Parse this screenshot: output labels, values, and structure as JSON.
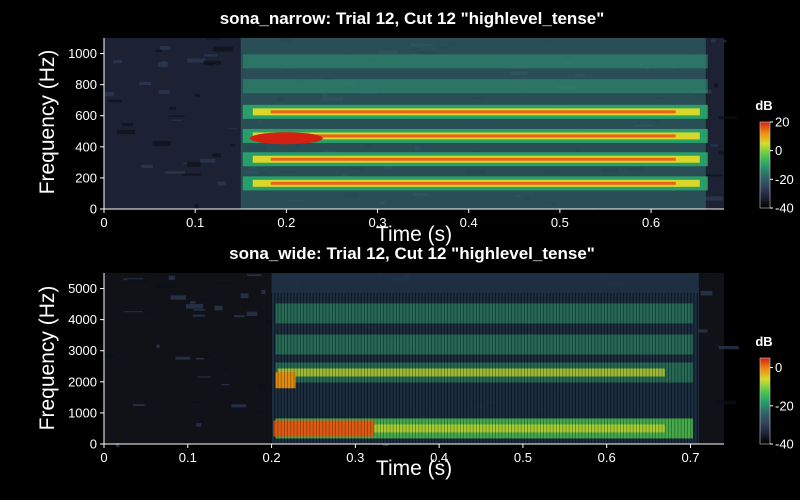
{
  "colors": {
    "background": "#000000",
    "text": "#ffffff",
    "colormap": [
      "#000000",
      "#1e2335",
      "#34435e",
      "#2f6a6a",
      "#26a26a",
      "#5ccb4a",
      "#d5dc2a",
      "#f08a10",
      "#d42010"
    ]
  },
  "chart_data": [
    {
      "type": "heatmap",
      "title": "sona_narrow: Trial 12, Cut 12 \"highlevel_tense\"",
      "xlabel": "Time (s)",
      "ylabel": "Frequency (Hz)",
      "xlim": [
        0,
        0.68
      ],
      "ylim": [
        0,
        1100
      ],
      "xticks": [
        "0",
        "0.1",
        "0.2",
        "0.3",
        "0.4",
        "0.5",
        "0.6"
      ],
      "yticks": [
        "0",
        "200",
        "400",
        "600",
        "800",
        "1000"
      ],
      "colorbar": {
        "label": "dB",
        "ticks": [
          "20",
          "0",
          "-20",
          "-40"
        ],
        "range": [
          -40,
          20
        ]
      },
      "voicing": {
        "onset_s": 0.15,
        "offset_s": 0.66
      },
      "harmonics_hz": [
        165,
        320,
        470,
        625,
        790,
        950
      ],
      "hot_region": {
        "t_start_s": 0.16,
        "t_end_s": 0.24,
        "freq_hz": 455
      }
    },
    {
      "type": "heatmap",
      "title": "sona_wide: Trial 12, Cut 12 \"highlevel_tense\"",
      "xlabel": "Time (s)",
      "ylabel": "Frequency (Hz)",
      "xlim": [
        0,
        0.74
      ],
      "ylim": [
        0,
        5500
      ],
      "xticks": [
        "0",
        "0.1",
        "0.2",
        "0.3",
        "0.4",
        "0.5",
        "0.6",
        "0.7"
      ],
      "yticks": [
        "0",
        "1000",
        "2000",
        "3000",
        "4000",
        "5000"
      ],
      "colorbar": {
        "label": "dB",
        "ticks": [
          "0",
          "-20",
          "-40"
        ],
        "range": [
          -40,
          5
        ]
      },
      "voicing": {
        "onset_s": 0.2,
        "offset_s": 0.71
      },
      "formants_hz": [
        500,
        2300,
        3200,
        4200
      ],
      "hot_region": {
        "t_start_s": 0.2,
        "t_end_s": 0.32,
        "freq_hz": 500
      }
    }
  ]
}
